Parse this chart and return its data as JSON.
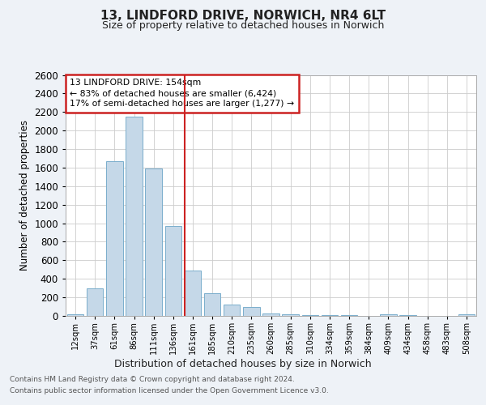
{
  "title_line1": "13, LINDFORD DRIVE, NORWICH, NR4 6LT",
  "title_line2": "Size of property relative to detached houses in Norwich",
  "xlabel": "Distribution of detached houses by size in Norwich",
  "ylabel": "Number of detached properties",
  "categories": [
    "12sqm",
    "37sqm",
    "61sqm",
    "86sqm",
    "111sqm",
    "136sqm",
    "161sqm",
    "185sqm",
    "210sqm",
    "235sqm",
    "260sqm",
    "285sqm",
    "310sqm",
    "334sqm",
    "359sqm",
    "384sqm",
    "409sqm",
    "434sqm",
    "458sqm",
    "483sqm",
    "508sqm"
  ],
  "values": [
    15,
    300,
    1670,
    2150,
    1590,
    970,
    490,
    245,
    125,
    95,
    30,
    20,
    12,
    8,
    5,
    3,
    15,
    5,
    3,
    1,
    15
  ],
  "bar_color": "#c5d8e8",
  "bar_edge_color": "#7aaecc",
  "vline_index": 6,
  "annotation_line1": "13 LINDFORD DRIVE: 154sqm",
  "annotation_line2": "← 83% of detached houses are smaller (6,424)",
  "annotation_line3": "17% of semi-detached houses are larger (1,277) →",
  "vline_color": "#cc2222",
  "annotation_box_edge_color": "#cc2222",
  "ylim": [
    0,
    2600
  ],
  "yticks": [
    0,
    200,
    400,
    600,
    800,
    1000,
    1200,
    1400,
    1600,
    1800,
    2000,
    2200,
    2400,
    2600
  ],
  "footer_line1": "Contains HM Land Registry data © Crown copyright and database right 2024.",
  "footer_line2": "Contains public sector information licensed under the Open Government Licence v3.0.",
  "bg_color": "#eef2f7",
  "plot_bg_color": "#ffffff",
  "grid_color": "#cccccc",
  "title_color": "#222222",
  "footer_color": "#555555"
}
